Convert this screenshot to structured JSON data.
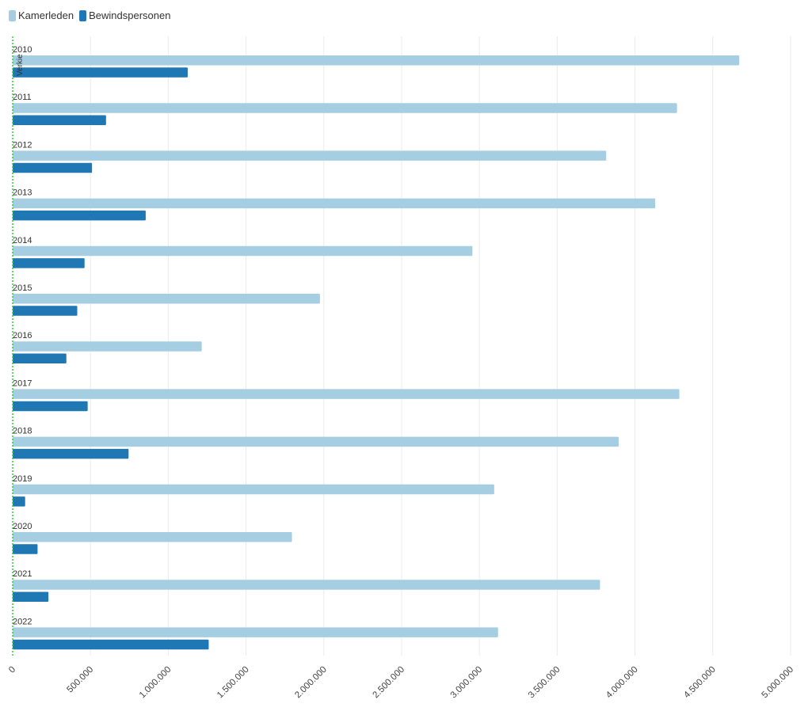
{
  "legend": {
    "items": [
      {
        "label": "Kamerleden",
        "color": "#a6cee3"
      },
      {
        "label": "Bewindspersonen",
        "color": "#1f78b4"
      }
    ]
  },
  "reference_line": {
    "label": "Verkie",
    "color": "#33cc33"
  },
  "chart_data": {
    "type": "bar",
    "orientation": "horizontal",
    "categories": [
      "2010",
      "2011",
      "2012",
      "2013",
      "2014",
      "2015",
      "2016",
      "2017",
      "2018",
      "2019",
      "2020",
      "2021",
      "2022"
    ],
    "series": [
      {
        "name": "Kamerleden",
        "color": "#a6cee3",
        "values": [
          4670000,
          4270000,
          3815000,
          4130000,
          2955000,
          1975000,
          1215000,
          4285000,
          3895000,
          3095000,
          1795000,
          3775000,
          3120000
        ]
      },
      {
        "name": "Bewindspersonen",
        "color": "#1f78b4",
        "values": [
          1125000,
          600000,
          510000,
          855000,
          462000,
          415000,
          345000,
          482000,
          745000,
          80000,
          160000,
          230000,
          1260000
        ]
      }
    ],
    "xlim": [
      0,
      5000000
    ],
    "xticks": [
      0,
      500000,
      1000000,
      1500000,
      2000000,
      2500000,
      3000000,
      3500000,
      4000000,
      4500000,
      5000000
    ],
    "xtick_labels": [
      "0",
      "500.000",
      "1.000.000",
      "1.500.000",
      "2.000.000",
      "2.500.000",
      "3.000.000",
      "3.500.000",
      "4.000.000",
      "4.500.000",
      "5.000.000"
    ],
    "grid": true,
    "legend_position": "top-left"
  }
}
